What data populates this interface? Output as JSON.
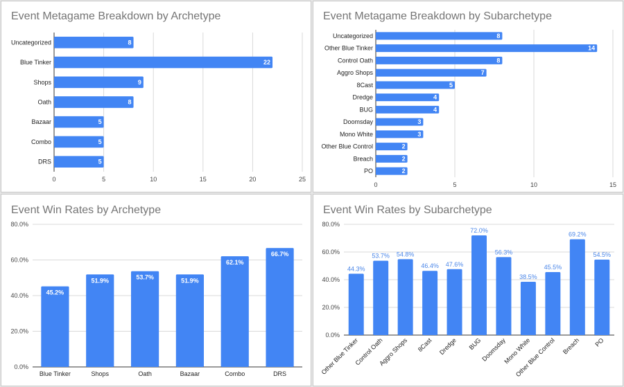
{
  "colors": {
    "bar": "#4285f4",
    "grid": "#d9d9d9"
  },
  "chart_data": [
    {
      "type": "bar",
      "orientation": "horizontal",
      "title": "Event Metagame Breakdown by Archetype",
      "categories": [
        "Uncategorized",
        "Blue Tinker",
        "Shops",
        "Oath",
        "Bazaar",
        "Combo",
        "DRS"
      ],
      "values": [
        8,
        22,
        9,
        8,
        5,
        5,
        5
      ],
      "value_labels": [
        "8",
        "22",
        "9",
        "8",
        "5",
        "5",
        "5"
      ],
      "xlim": [
        0,
        25
      ],
      "ticks": [
        0,
        5,
        10,
        15,
        20,
        25
      ],
      "tick_labels": [
        "0",
        "5",
        "10",
        "15",
        "20",
        "25"
      ],
      "grid": true,
      "legend": "none"
    },
    {
      "type": "bar",
      "orientation": "horizontal",
      "title": "Event Metagame Breakdown by Subarchetype",
      "categories": [
        "Uncategorized",
        "Other Blue Tinker",
        "Control Oath",
        "Aggro Shops",
        "8Cast",
        "Dredge",
        "BUG",
        "Doomsday",
        "Mono White",
        "Other Blue Control",
        "Breach",
        "PO"
      ],
      "values": [
        8,
        14,
        8,
        7,
        5,
        4,
        4,
        3,
        3,
        2,
        2,
        2
      ],
      "value_labels": [
        "8",
        "14",
        "8",
        "7",
        "5",
        "4",
        "4",
        "3",
        "3",
        "2",
        "2",
        "2"
      ],
      "xlim": [
        0,
        15
      ],
      "ticks": [
        0,
        5,
        10,
        15
      ],
      "tick_labels": [
        "0",
        "5",
        "10",
        "15"
      ],
      "grid": true,
      "legend": "none"
    },
    {
      "type": "bar",
      "orientation": "vertical",
      "title": "Event Win Rates by Archetype",
      "categories": [
        "Blue Tinker",
        "Shops",
        "Oath",
        "Bazaar",
        "Combo",
        "DRS"
      ],
      "values": [
        45.2,
        51.9,
        53.7,
        51.9,
        62.1,
        66.7
      ],
      "value_labels": [
        "45.2%",
        "51.9%",
        "53.7%",
        "51.9%",
        "62.1%",
        "66.7%"
      ],
      "ylim": [
        0,
        80
      ],
      "ticks": [
        0,
        20,
        40,
        60,
        80
      ],
      "tick_labels": [
        "0.0%",
        "20.0%",
        "40.0%",
        "60.0%",
        "80.0%"
      ],
      "grid": true,
      "legend": "none"
    },
    {
      "type": "bar",
      "orientation": "vertical",
      "title": "Event Win Rates by Subarchetype",
      "categories": [
        "Other Blue Tinker",
        "Control Oath",
        "Aggro Shops",
        "8Cast",
        "Dredge",
        "BUG",
        "Doomsday",
        "Mono White",
        "Other Blue Control",
        "Breach",
        "PO"
      ],
      "values": [
        44.3,
        53.7,
        54.8,
        46.4,
        47.6,
        72.0,
        56.3,
        38.5,
        45.5,
        69.2,
        54.5
      ],
      "value_labels": [
        "44.3%",
        "53.7%",
        "54.8%",
        "46.4%",
        "47.6%",
        "72.0%",
        "56.3%",
        "38.5%",
        "45.5%",
        "69.2%",
        "54.5%"
      ],
      "ylim": [
        0,
        80
      ],
      "ticks": [
        0,
        20,
        40,
        60,
        80
      ],
      "tick_labels": [
        "0.0%",
        "20.0%",
        "40.0%",
        "60.0%",
        "80.0%"
      ],
      "grid": true,
      "legend": "none",
      "rotated_category_labels": true
    }
  ]
}
